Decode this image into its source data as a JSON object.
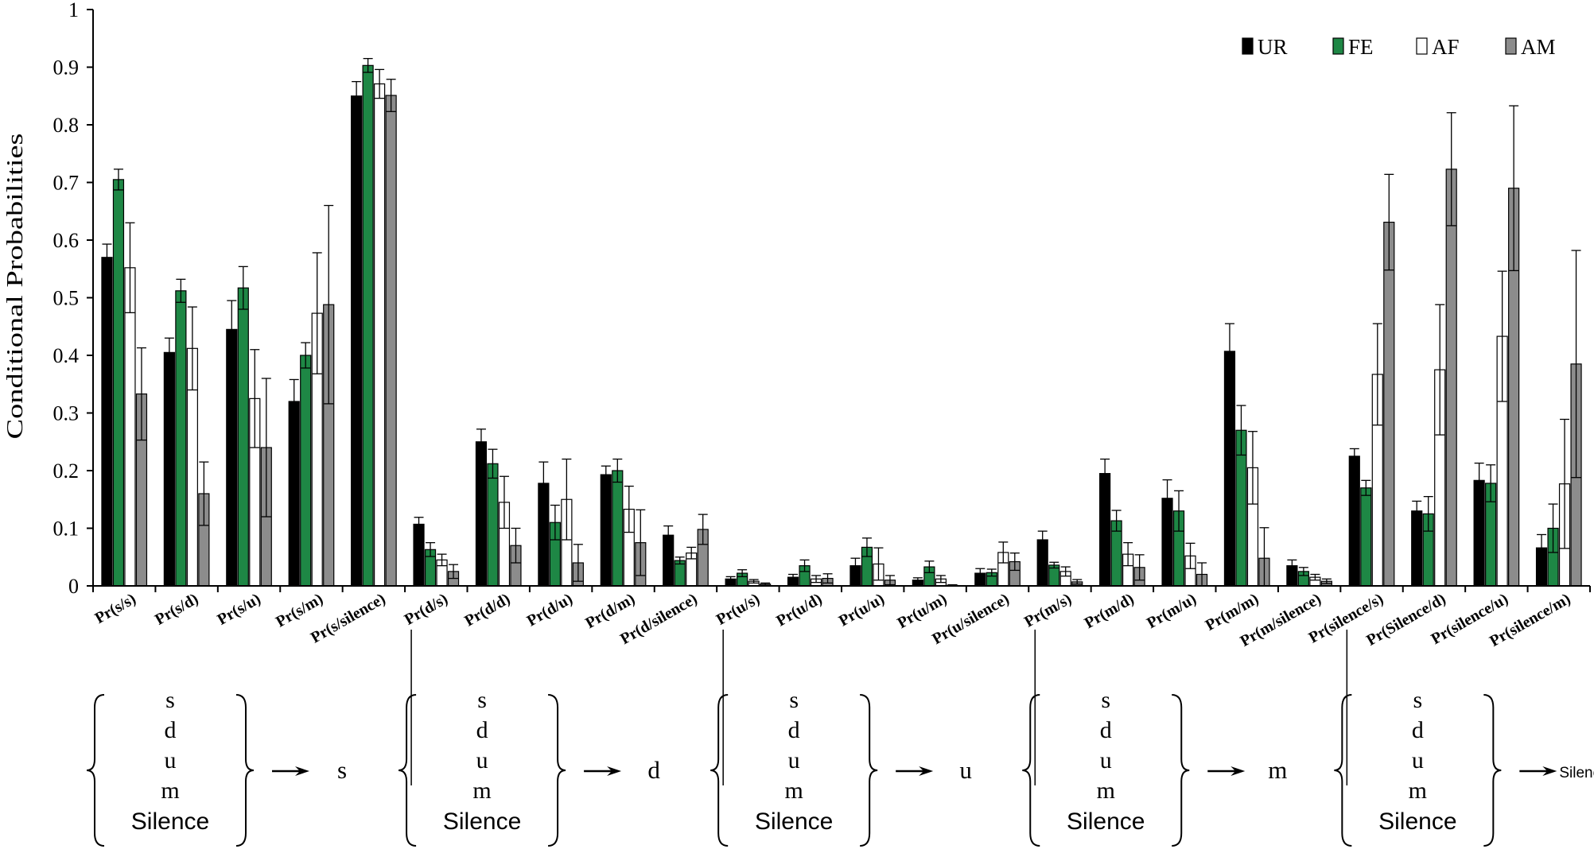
{
  "chart_data": {
    "type": "bar",
    "ylabel": "Conditional Probabilities",
    "xlabel": "",
    "ylim": [
      0,
      1
    ],
    "yticks": [
      "0",
      "0.1",
      "0.2",
      "0.3",
      "0.4",
      "0.5",
      "0.6",
      "0.7",
      "0.8",
      "0.9",
      "1"
    ],
    "legend_position": "top-right",
    "categories": [
      "Pr(s/s)",
      "Pr(s/d)",
      "Pr(s/u)",
      "Pr(s/m)",
      "Pr(s/silence)",
      "Pr(d/s)",
      "Pr(d/d)",
      "Pr(d/u)",
      "Pr(d/m)",
      "Pr(d/silence)",
      "Pr(u/s)",
      "Pr(u/d)",
      "Pr(u/u)",
      "Pr(u/m)",
      "Pr(u/silence)",
      "Pr(m/s)",
      "Pr(m/d)",
      "Pr(m/u)",
      "Pr(m/m)",
      "Pr(m/silence)",
      "Pr(silence/s)",
      "Pr(Silence/d)",
      "Pr(silence/u)",
      "Pr(silence/m)"
    ],
    "series": [
      {
        "name": "UR",
        "color": "#000000",
        "values": [
          0.57,
          0.405,
          0.445,
          0.32,
          0.85,
          0.107,
          0.25,
          0.178,
          0.193,
          0.088,
          0.012,
          0.015,
          0.035,
          0.01,
          0.022,
          0.08,
          0.195,
          0.152,
          0.407,
          0.035,
          0.225,
          0.13,
          0.183,
          0.066
        ],
        "errors": [
          0.023,
          0.025,
          0.05,
          0.038,
          0.025,
          0.012,
          0.022,
          0.037,
          0.015,
          0.016,
          0.004,
          0.005,
          0.013,
          0.004,
          0.008,
          0.015,
          0.025,
          0.032,
          0.048,
          0.01,
          0.013,
          0.017,
          0.03,
          0.023
        ]
      },
      {
        "name": "FE",
        "color": "#1e8745",
        "values": [
          0.705,
          0.512,
          0.517,
          0.4,
          0.903,
          0.063,
          0.212,
          0.11,
          0.2,
          0.044,
          0.022,
          0.035,
          0.067,
          0.033,
          0.023,
          0.036,
          0.113,
          0.13,
          0.27,
          0.025,
          0.17,
          0.125,
          0.178,
          0.1
        ],
        "errors": [
          0.018,
          0.02,
          0.037,
          0.022,
          0.012,
          0.012,
          0.025,
          0.03,
          0.02,
          0.006,
          0.006,
          0.01,
          0.016,
          0.01,
          0.006,
          0.005,
          0.018,
          0.035,
          0.043,
          0.007,
          0.013,
          0.03,
          0.032,
          0.042
        ]
      },
      {
        "name": "AF",
        "color": "#ffffff",
        "values": [
          0.552,
          0.412,
          0.325,
          0.473,
          0.871,
          0.045,
          0.145,
          0.15,
          0.133,
          0.057,
          0.008,
          0.012,
          0.038,
          0.012,
          0.058,
          0.025,
          0.055,
          0.052,
          0.205,
          0.015,
          0.367,
          0.375,
          0.433,
          0.177
        ],
        "errors": [
          0.078,
          0.072,
          0.085,
          0.105,
          0.025,
          0.01,
          0.045,
          0.07,
          0.04,
          0.01,
          0.003,
          0.006,
          0.028,
          0.006,
          0.018,
          0.008,
          0.02,
          0.022,
          0.063,
          0.005,
          0.088,
          0.113,
          0.113,
          0.112
        ]
      },
      {
        "name": "AM",
        "color": "#8c8c8c",
        "values": [
          0.333,
          0.16,
          0.24,
          0.488,
          0.851,
          0.025,
          0.07,
          0.04,
          0.075,
          0.098,
          0.003,
          0.013,
          0.01,
          0.001,
          0.042,
          0.007,
          0.032,
          0.02,
          0.048,
          0.008,
          0.631,
          0.723,
          0.69,
          0.385
        ],
        "errors": [
          0.08,
          0.055,
          0.12,
          0.172,
          0.028,
          0.012,
          0.03,
          0.032,
          0.057,
          0.026,
          0.002,
          0.008,
          0.008,
          0.001,
          0.015,
          0.004,
          0.022,
          0.02,
          0.053,
          0.004,
          0.083,
          0.098,
          0.143,
          0.197
        ]
      }
    ],
    "annotation_groups": [
      {
        "sources": [
          "s",
          "d",
          "u",
          "m",
          "Silence"
        ],
        "target": "s"
      },
      {
        "sources": [
          "s",
          "d",
          "u",
          "m",
          "Silence"
        ],
        "target": "d"
      },
      {
        "sources": [
          "s",
          "d",
          "u",
          "m",
          "Silence"
        ],
        "target": "u"
      },
      {
        "sources": [
          "s",
          "d",
          "u",
          "m",
          "Silence"
        ],
        "target": "m"
      },
      {
        "sources": [
          "s",
          "d",
          "u",
          "m",
          "Silence"
        ],
        "target": "Silence"
      }
    ]
  }
}
